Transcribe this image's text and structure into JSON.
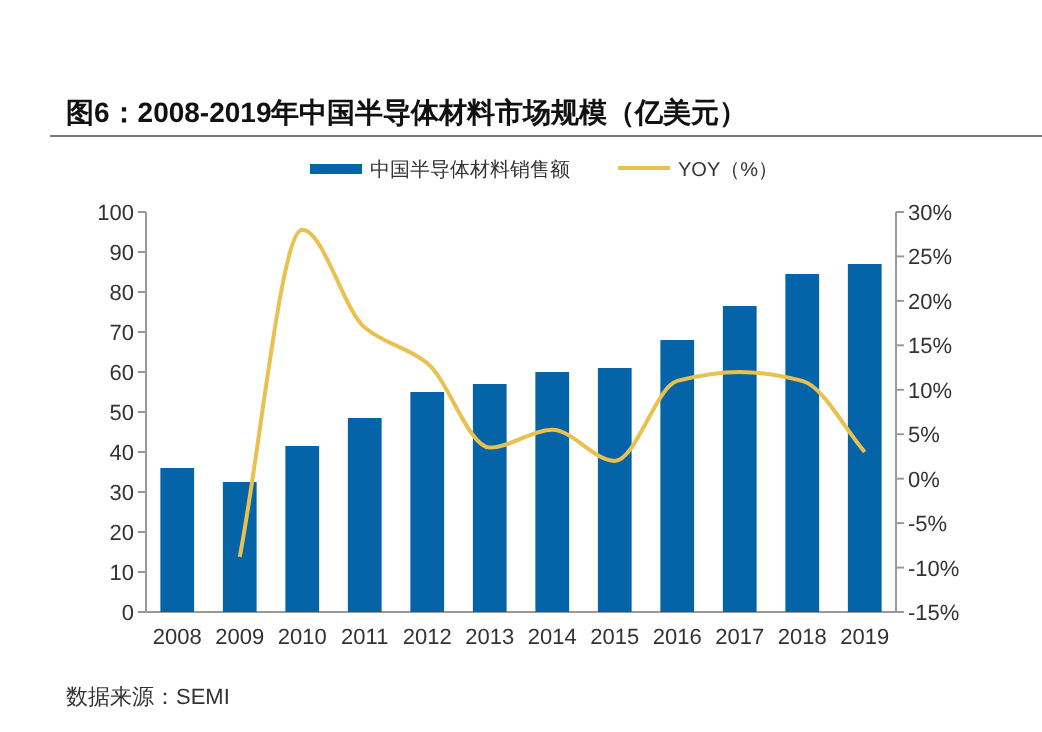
{
  "chart_data": {
    "type": "bar",
    "title": "图6：2008-2019年中国半导体材料市场规模（亿美元）",
    "categories": [
      "2008",
      "2009",
      "2010",
      "2011",
      "2012",
      "2013",
      "2014",
      "2015",
      "2016",
      "2017",
      "2018",
      "2019"
    ],
    "series": [
      {
        "name": "中国半导体材料销售额",
        "color": "#0563a8",
        "values": [
          36,
          32.5,
          41.5,
          48.5,
          55,
          57,
          60,
          61,
          68,
          76.5,
          84.5,
          87
        ]
      },
      {
        "name": "YOY（%）",
        "type": "line",
        "axis": "y2",
        "color": "#e8c150",
        "values": [
          null,
          -8.8,
          28,
          17,
          13,
          3.5,
          5.5,
          2,
          11,
          12,
          11,
          3
        ]
      }
    ],
    "ylim": [
      0,
      100
    ],
    "yticks": [
      0,
      10,
      20,
      30,
      40,
      50,
      60,
      70,
      80,
      90,
      100
    ],
    "y2lim": [
      -15,
      30
    ],
    "y2ticks": [
      {
        "value": -15,
        "label": "-15%"
      },
      {
        "value": -10,
        "label": "-10%"
      },
      {
        "value": -5,
        "label": "-5%"
      },
      {
        "value": 0,
        "label": "0%"
      },
      {
        "value": 5,
        "label": "5%"
      },
      {
        "value": 10,
        "label": "10%"
      },
      {
        "value": 15,
        "label": "15%"
      },
      {
        "value": 20,
        "label": "20%"
      },
      {
        "value": 25,
        "label": "25%"
      },
      {
        "value": 30,
        "label": "30%"
      }
    ],
    "legend": "top",
    "grid": false,
    "annotations": [
      "数据来源：SEMI"
    ]
  }
}
